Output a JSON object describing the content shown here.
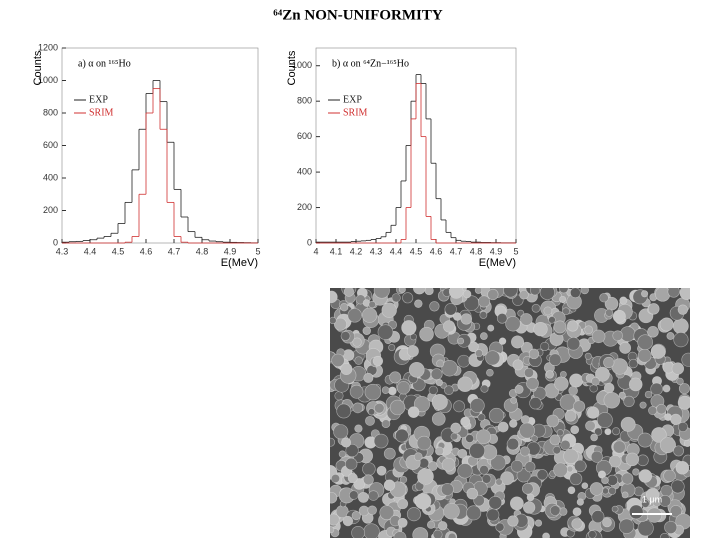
{
  "title": "⁶⁴Zn NON-UNIFORMITY",
  "chart_data": [
    {
      "type": "histogram",
      "annotation": "a)  α on ¹⁶⁵Ho",
      "y_label": "Counts",
      "x_label": "E(MeV)",
      "bins": [
        4.3,
        4.325,
        4.35,
        4.375,
        4.4,
        4.425,
        4.45,
        4.475,
        4.5,
        4.525,
        4.55,
        4.575,
        4.6,
        4.625,
        4.65,
        4.675,
        4.7,
        4.725,
        4.75,
        4.775,
        4.8,
        4.825,
        4.85,
        4.875,
        4.9,
        4.925,
        4.95,
        4.975,
        5.0
      ],
      "series": [
        {
          "name": "EXP",
          "color": "#222222",
          "values": [
            5,
            8,
            10,
            15,
            20,
            30,
            40,
            60,
            120,
            250,
            450,
            700,
            920,
            1000,
            870,
            620,
            330,
            160,
            70,
            35,
            20,
            12,
            8,
            5,
            4,
            3,
            2,
            1
          ]
        },
        {
          "name": "SRIM",
          "color": "#d03030",
          "values": [
            0,
            0,
            0,
            0,
            0,
            0,
            0,
            0,
            0,
            5,
            40,
            300,
            800,
            950,
            700,
            250,
            40,
            5,
            0,
            0,
            0,
            0,
            0,
            0,
            0,
            0,
            0,
            0
          ]
        }
      ],
      "xlim": [
        4.3,
        5
      ],
      "xticks": [
        4.3,
        4.4,
        4.5,
        4.6,
        4.7,
        4.8,
        4.9,
        5
      ],
      "ylim": [
        0,
        1200
      ],
      "yticks": [
        0,
        200,
        400,
        600,
        800,
        1000,
        1200
      ]
    },
    {
      "type": "histogram",
      "annotation": "b)  α on ⁶⁴Zn−¹⁶⁵Ho",
      "y_label": "Counts",
      "x_label": "E(MeV)",
      "bins": [
        4.0,
        4.025,
        4.05,
        4.075,
        4.1,
        4.125,
        4.15,
        4.175,
        4.2,
        4.225,
        4.25,
        4.275,
        4.3,
        4.325,
        4.35,
        4.375,
        4.4,
        4.425,
        4.45,
        4.475,
        4.5,
        4.525,
        4.55,
        4.575,
        4.6,
        4.625,
        4.65,
        4.675,
        4.7,
        4.725,
        4.75,
        4.775,
        4.8,
        4.825,
        4.85,
        4.875,
        4.9,
        4.925,
        4.95,
        4.975,
        5.0
      ],
      "series": [
        {
          "name": "EXP",
          "color": "#222222",
          "values": [
            5,
            5,
            5,
            5,
            5,
            5,
            5,
            8,
            10,
            12,
            15,
            20,
            25,
            35,
            60,
            100,
            200,
            350,
            550,
            800,
            950,
            900,
            700,
            450,
            250,
            130,
            60,
            30,
            15,
            10,
            8,
            5,
            5,
            3,
            3,
            2,
            2,
            1,
            1,
            1
          ]
        },
        {
          "name": "SRIM",
          "color": "#d03030",
          "values": [
            0,
            0,
            0,
            0,
            0,
            0,
            0,
            0,
            0,
            0,
            0,
            0,
            0,
            0,
            0,
            0,
            0,
            20,
            200,
            700,
            900,
            600,
            150,
            20,
            0,
            0,
            0,
            0,
            0,
            0,
            0,
            0,
            0,
            0,
            0,
            0,
            0,
            0,
            0,
            0
          ]
        }
      ],
      "xlim": [
        4,
        5
      ],
      "xticks": [
        4,
        4.1,
        4.2,
        4.3,
        4.4,
        4.5,
        4.6,
        4.7,
        4.8,
        4.9,
        5
      ],
      "ylim": [
        0,
        1100
      ],
      "yticks": [
        0,
        200,
        400,
        600,
        800,
        1000
      ]
    }
  ],
  "image": {
    "scale_label": "1 μm"
  }
}
